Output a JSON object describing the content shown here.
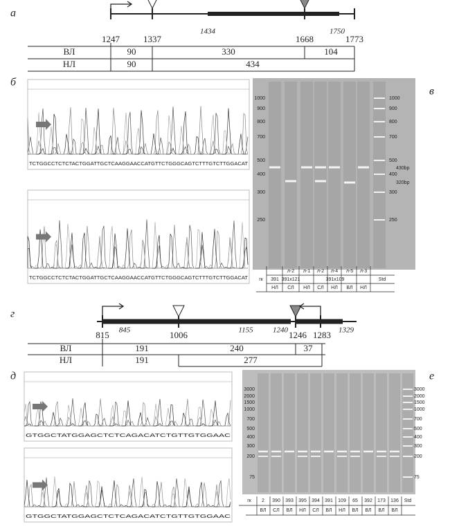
{
  "panel_a": {
    "label": "а",
    "positions": [
      1247,
      1337,
      1668,
      1773
    ],
    "italic_positions": [
      1434,
      1750
    ],
    "rows": [
      {
        "name": "ВЛ",
        "segments": [
          90,
          330,
          104
        ]
      },
      {
        "name": "НЛ",
        "segments": [
          90,
          434
        ]
      }
    ]
  },
  "panel_b": {
    "label": "б",
    "sequence_top": "TCTGGCCTCTCTACTGGATTGCTCAAGGAACCATGTTCTGGGCAGTCTTTGTCTTGGACAT",
    "sequence_bottom": "TCTGGCCTCTCTACTGGATTGCTCAAGGAACCATGTTCTGGGCAGTCTTTGTCTTGGACAT"
  },
  "panel_v": {
    "label": "в",
    "ladder": [
      1000,
      900,
      800,
      700,
      500,
      400,
      300,
      250
    ],
    "markers": [
      "430bp",
      "320bp"
    ],
    "table": {
      "lines": [
        "л-2",
        "л-1",
        "л-2",
        "л-4",
        "л-5",
        "л-3"
      ],
      "row1": [
        "гк",
        "391",
        "391х121",
        "391х109",
        "Std"
      ],
      "row2": [
        "НЛ",
        "СЛ",
        "НЛ",
        "СЛ",
        "НЛ",
        "ВЛ",
        "НЛ"
      ]
    }
  },
  "panel_g": {
    "label": "г",
    "positions": [
      815,
      1006,
      1246,
      1283
    ],
    "italic_positions": [
      845,
      1155,
      1240,
      1329
    ],
    "rows": [
      {
        "name": "ВЛ",
        "segments": [
          191,
          240,
          37
        ]
      },
      {
        "name": "НЛ",
        "segments": [
          191,
          277
        ]
      }
    ]
  },
  "panel_d": {
    "label": "д",
    "sequence": "GTGGCTATGGAGCTCTCAGACATCTGTTGTGGAAC"
  },
  "panel_e": {
    "label": "е",
    "ladder": [
      3000,
      2000,
      1500,
      1000,
      700,
      500,
      400,
      300,
      200,
      75
    ],
    "table": {
      "row1": [
        "гк",
        "2",
        "390",
        "393",
        "395",
        "394",
        "391",
        "109",
        "65",
        "392",
        "173",
        "136",
        "Std"
      ],
      "row2": [
        "ВЛ",
        "СЛ",
        "ВЛ",
        "НЛ",
        "СЛ",
        "ВЛ",
        "НЛ",
        "ВЛ",
        "ВЛ",
        "ВЛ",
        "ВЛ",
        "ВЛ"
      ]
    }
  }
}
